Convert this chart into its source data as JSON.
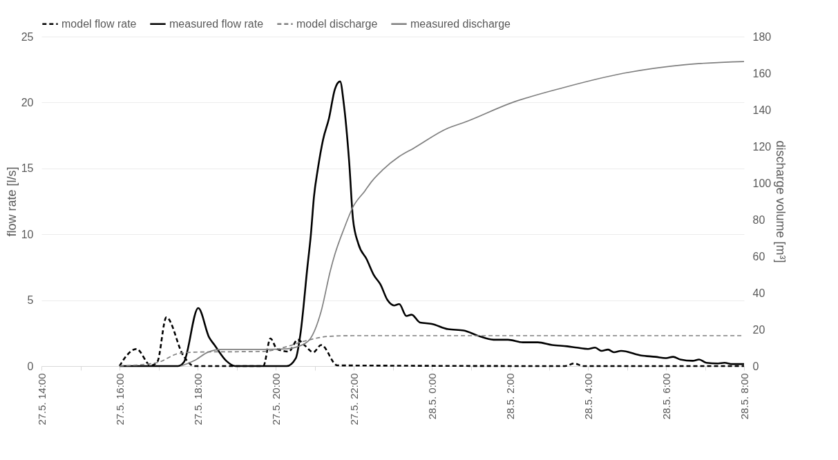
{
  "chart_data": {
    "type": "line",
    "ylabel": "flow rate [l/s]",
    "y2label": "discharge volume [m³]",
    "xlim": [
      "--05-27T14:00",
      "--05-28T08:00"
    ],
    "xticks": [
      {
        "value": "--05-27T14:00",
        "label": "27.5. 14:00"
      },
      {
        "value": "--05-27T15:00",
        "label": null
      },
      {
        "value": "--05-27T16:00",
        "label": "27.5. 16:00"
      },
      {
        "value": "--05-27T17:00",
        "label": null
      },
      {
        "value": "--05-27T18:00",
        "label": "27.5. 18:00"
      },
      {
        "value": "--05-27T19:00",
        "label": null
      },
      {
        "value": "--05-27T20:00",
        "label": "27.5. 20:00"
      },
      {
        "value": "--05-27T21:00",
        "label": null
      },
      {
        "value": "--05-27T22:00",
        "label": "27.5. 22:00"
      },
      {
        "value": "--05-27T23:00",
        "label": null
      },
      {
        "value": "--05-28T00:00",
        "label": "28.5. 0:00"
      },
      {
        "value": "--05-28T01:00",
        "label": null
      },
      {
        "value": "--05-28T02:00",
        "label": "28.5. 2:00"
      },
      {
        "value": "--05-28T03:00",
        "label": null
      },
      {
        "value": "--05-28T04:00",
        "label": "28.5. 4:00"
      },
      {
        "value": "--05-28T05:00",
        "label": null
      },
      {
        "value": "--05-28T06:00",
        "label": "28.5. 6:00"
      },
      {
        "value": "--05-28T07:00",
        "label": null
      },
      {
        "value": "--05-28T08:00",
        "label": "28.5. 8:00"
      }
    ],
    "ylim": [
      0,
      25
    ],
    "yticks": [
      0,
      5,
      10,
      15,
      20,
      25
    ],
    "y2lim": [
      0,
      180
    ],
    "y2ticks": [
      0,
      20,
      40,
      60,
      80,
      100,
      120,
      140,
      160,
      180
    ],
    "grid": "y",
    "legend": "top",
    "series": [
      {
        "name": "model flow rate",
        "color": "#000000",
        "line_style": "dashed",
        "x": [
          "--05-27T16:00",
          "--05-27T16:11",
          "--05-27T16:26",
          "--05-27T16:48",
          "--05-27T16:58",
          "--05-27T17:12",
          "--05-27T17:38",
          "--05-27T17:55",
          "--05-27T19:41",
          "--05-27T19:52",
          "--05-27T20:02",
          "--05-27T20:20",
          "--05-27T20:34",
          "--05-27T20:44",
          "--05-27T20:58",
          "--05-27T21:10",
          "--05-27T21:35",
          "--05-28T03:25",
          "--05-28T03:39",
          "--05-28T03:53",
          "--05-28T08:00"
        ],
        "values": [
          0,
          0.8,
          1.3,
          0.05,
          0.3,
          3.7,
          0.8,
          0,
          0,
          2.1,
          1.3,
          1.1,
          2.0,
          1.6,
          1.05,
          1.6,
          0.05,
          0,
          0.2,
          0,
          0
        ]
      },
      {
        "name": "measured flow rate",
        "color": "#000000",
        "line_style": "solid",
        "x": [
          "--05-27T16:00",
          "--05-27T17:30",
          "--05-27T17:39",
          "--05-27T18:01",
          "--05-27T18:18",
          "--05-27T18:26",
          "--05-27T18:44",
          "--05-27T18:58",
          "--05-27T20:17",
          "--05-27T20:31",
          "--05-27T20:38",
          "--05-27T20:49",
          "--05-27T20:54",
          "--05-27T20:59",
          "--05-27T21:05",
          "--05-27T21:13",
          "--05-27T21:22",
          "--05-27T21:31",
          "--05-27T21:39",
          "--05-27T21:45",
          "--05-27T21:53",
          "--05-27T21:59",
          "--05-27T22:07",
          "--05-27T22:20",
          "--05-27T22:31",
          "--05-27T22:41",
          "--05-27T22:52",
          "--05-27T23:02",
          "--05-27T23:10",
          "--05-27T23:21",
          "--05-27T23:29",
          "--05-27T23:42",
          "--05-28T00:00",
          "--05-28T00:25",
          "--05-28T00:49",
          "--05-28T01:11",
          "--05-28T01:35",
          "--05-28T01:57",
          "--05-28T02:20",
          "--05-28T02:43",
          "--05-28T03:05",
          "--05-28T03:28",
          "--05-28T03:43",
          "--05-28T04:00",
          "--05-28T04:11",
          "--05-28T04:21",
          "--05-28T04:31",
          "--05-28T04:40",
          "--05-28T04:51",
          "--05-28T05:22",
          "--05-28T05:44",
          "--05-28T06:00",
          "--05-28T06:11",
          "--05-28T06:22",
          "--05-28T06:41",
          "--05-28T06:51",
          "--05-28T07:02",
          "--05-28T07:20",
          "--05-28T07:30",
          "--05-28T07:42",
          "--05-28T08:00"
        ],
        "values": [
          0,
          0,
          0.3,
          4.4,
          2.15,
          1.6,
          0.4,
          0,
          0,
          0.6,
          2.4,
          7.6,
          9.9,
          12.9,
          15.0,
          17.2,
          18.8,
          21.0,
          21.6,
          19.8,
          15.5,
          11.1,
          9.3,
          8.1,
          6.9,
          6.2,
          5.0,
          4.6,
          4.7,
          3.8,
          3.9,
          3.3,
          3.2,
          2.8,
          2.7,
          2.3,
          2.0,
          2.0,
          1.8,
          1.8,
          1.6,
          1.5,
          1.4,
          1.3,
          1.4,
          1.15,
          1.25,
          1.05,
          1.15,
          0.8,
          0.7,
          0.6,
          0.7,
          0.5,
          0.4,
          0.5,
          0.25,
          0.2,
          0.25,
          0.15,
          0.15
        ]
      },
      {
        "name": "model discharge",
        "color": "#7f7f7f",
        "line_style": "dashed",
        "axis": "y2",
        "x": [
          "--05-27T16:00",
          "--05-27T16:58",
          "--05-27T17:30",
          "--05-27T17:55",
          "--05-27T19:41",
          "--05-27T20:17",
          "--05-27T20:44",
          "--05-27T21:24",
          "--05-27T22:00",
          "--05-28T08:00"
        ],
        "values": [
          0,
          1.9,
          6.8,
          7.6,
          8.0,
          10.6,
          13.6,
          16.3,
          16.6,
          16.6
        ]
      },
      {
        "name": "measured discharge",
        "color": "#7f7f7f",
        "line_style": "solid",
        "axis": "y2",
        "x": [
          "--05-27T17:34",
          "--05-27T17:55",
          "--05-27T18:16",
          "--05-27T18:37",
          "--05-27T19:41",
          "--05-27T20:17",
          "--05-27T20:34",
          "--05-27T20:52",
          "--05-27T21:10",
          "--05-27T21:24",
          "--05-27T21:31",
          "--05-27T21:45",
          "--05-27T21:59",
          "--05-27T22:17",
          "--05-27T22:28",
          "--05-27T22:44",
          "--05-27T23:10",
          "--05-27T23:32",
          "--05-28T00:25",
          "--05-28T00:49",
          "--05-28T02:04",
          "--05-28T03:21",
          "--05-28T04:55",
          "--05-28T06:30",
          "--05-28T08:00"
        ],
        "values": [
          0,
          3.0,
          7.6,
          9.1,
          9.1,
          9.4,
          10.6,
          14.4,
          30,
          52,
          61,
          75,
          87,
          95.6,
          101,
          107,
          114.5,
          119,
          130,
          133,
          144,
          152,
          160,
          164.7,
          166.4
        ]
      }
    ]
  }
}
